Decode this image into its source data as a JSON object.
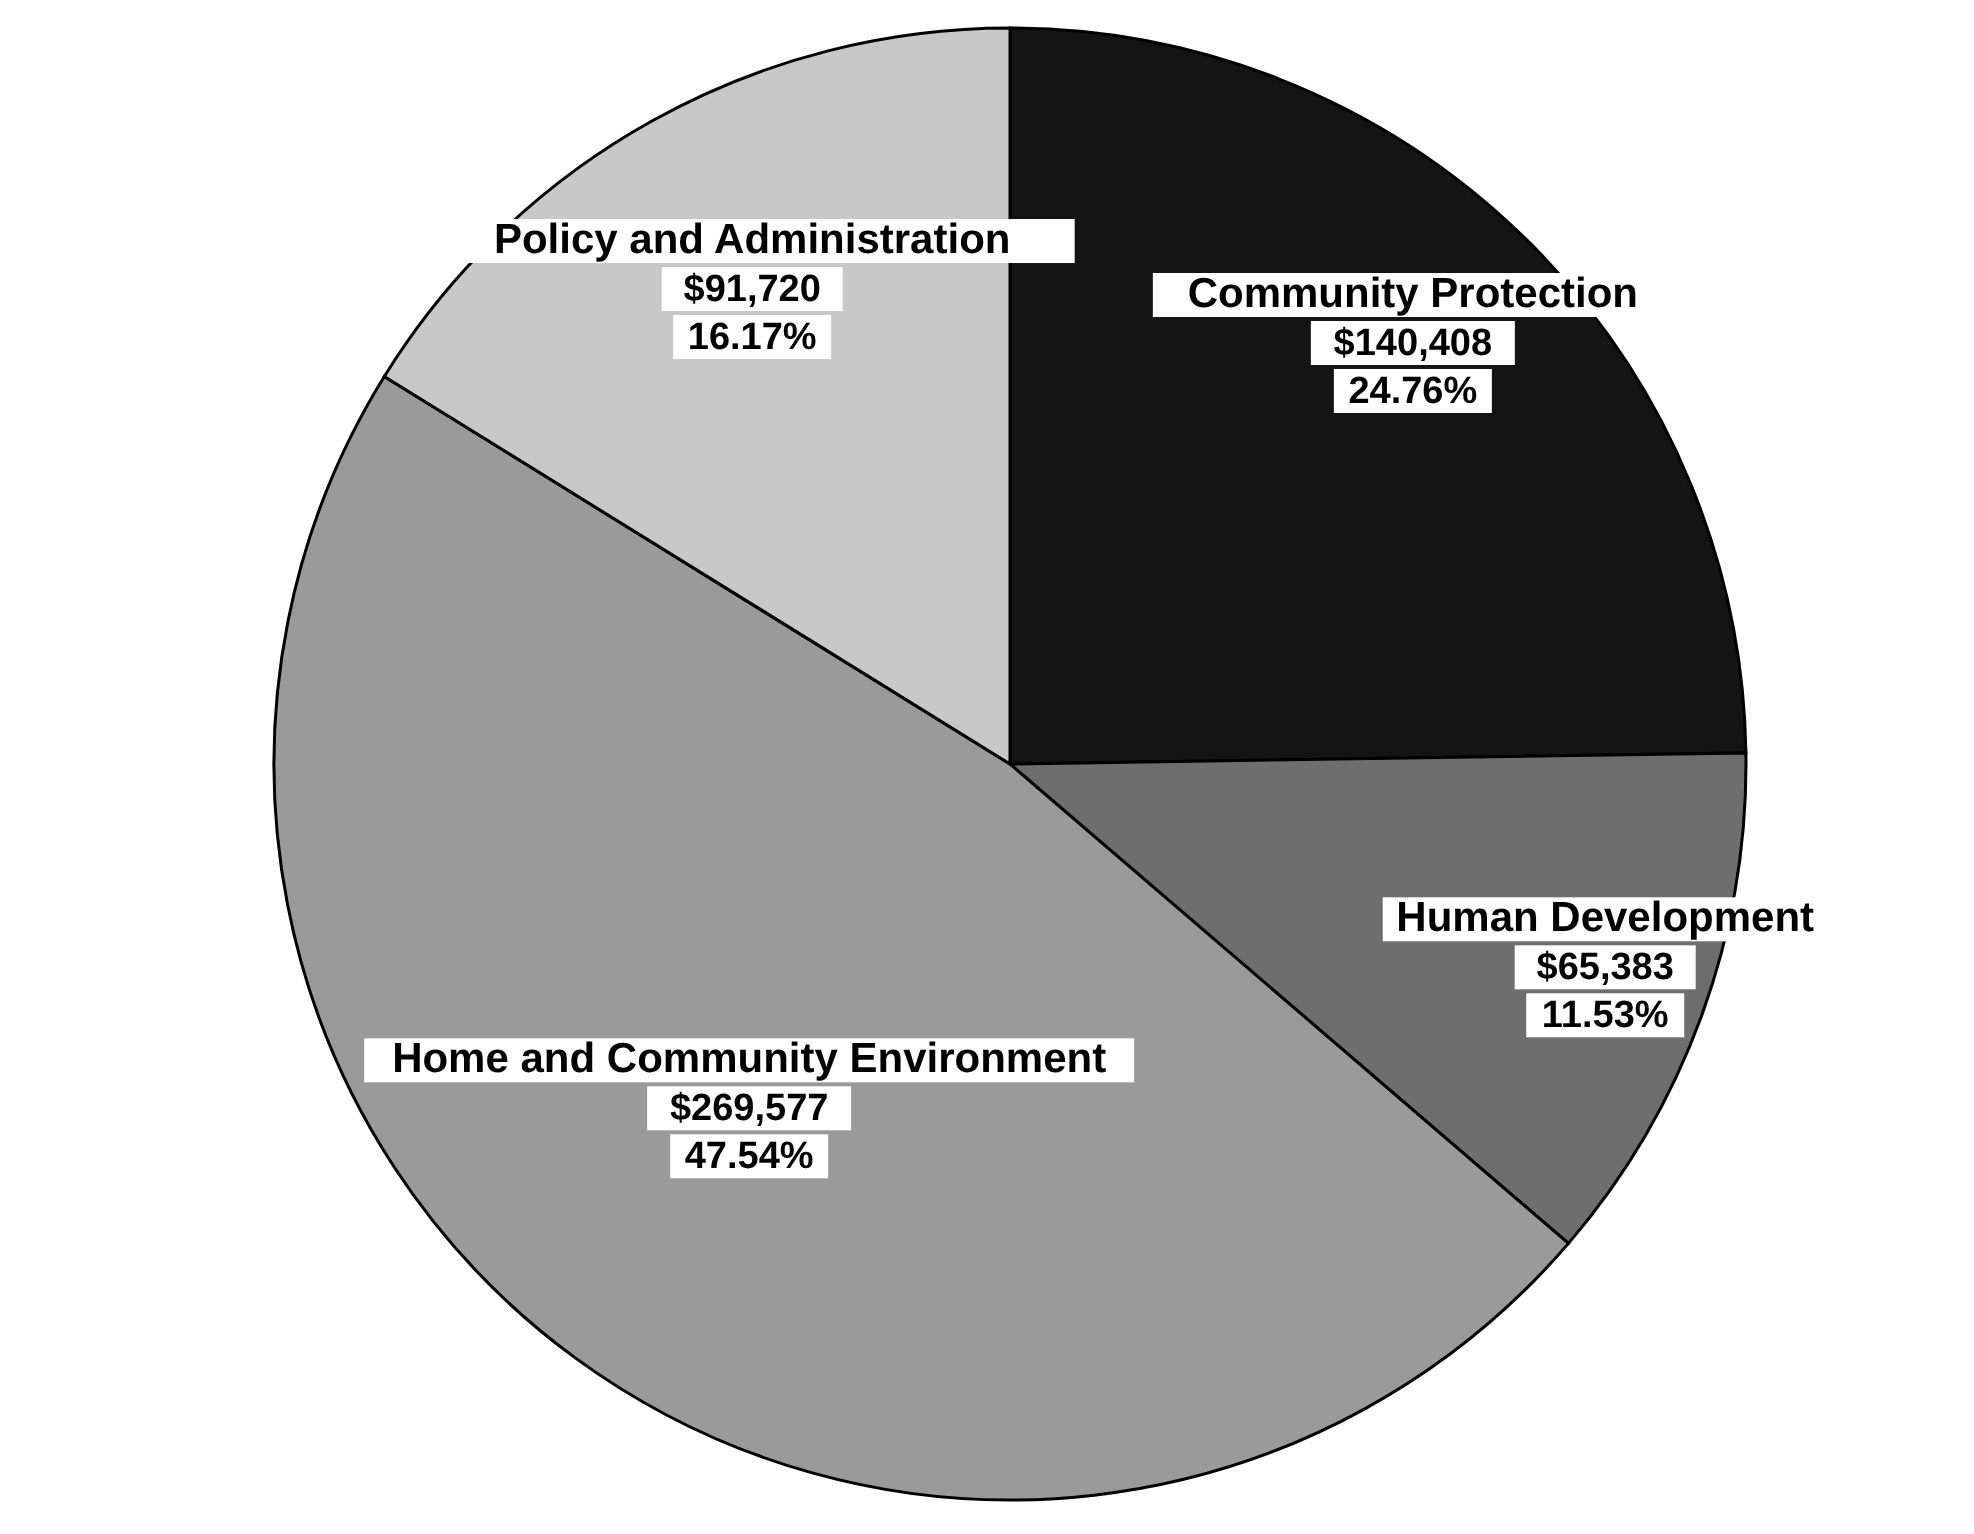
{
  "chart_data": {
    "type": "pie",
    "categories": [
      "Community Protection",
      "Human Development",
      "Home and Community Environment",
      "Policy and Administration"
    ],
    "values": [
      140408,
      65383,
      269577,
      91720
    ],
    "value_labels": [
      "$140,408\n24.76%",
      "$65,383\n11.53%",
      "$269,577\n47.54%",
      "$91,720\n16.17%"
    ],
    "colors": [
      "#141414",
      "#6e6e6e",
      "#9a9a9a",
      "#c8c8c8"
    ]
  }
}
